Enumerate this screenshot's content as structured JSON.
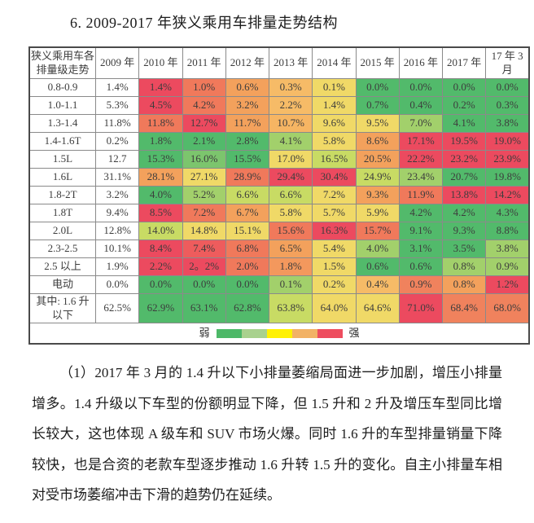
{
  "page": {
    "title": "6. 2009-2017 年狭义乘用车排量走势结构"
  },
  "chart_data": {
    "type": "heatmap",
    "title": "2009-2017 年狭义乘用车排量走势结构",
    "corner_label": "狭义乘用车各排量级走势",
    "columns": [
      "2009 年",
      "2010 年",
      "2011 年",
      "2012 年",
      "2013 年",
      "2014 年",
      "2015 年",
      "2016 年",
      "2017 年",
      "17 年 3 月"
    ],
    "rows": [
      {
        "label": "0.8-0.9",
        "base": "1.4%",
        "values": [
          "1.4%",
          "1.0%",
          "0.6%",
          "0.3%",
          "0.1%",
          "0.0%",
          "0.0%",
          "0.0%",
          "0.0%"
        ],
        "colors": [
          "#EC4A5F",
          "#F0795B",
          "#F3A15C",
          "#F6BB67",
          "#F0D967",
          "#52BA6B",
          "#52BA6B",
          "#52BA6B",
          "#52BA6B"
        ]
      },
      {
        "label": "1.0-1.1",
        "base": "5.3%",
        "values": [
          "4.5%",
          "4.2%",
          "3.2%",
          "2.2%",
          "1.4%",
          "0.7%",
          "0.4%",
          "0.2%",
          "0.3%"
        ],
        "colors": [
          "#EC4A5F",
          "#F0795B",
          "#F3A15C",
          "#F6BB67",
          "#F0D967",
          "#52BA6B",
          "#52BA6B",
          "#52BA6B",
          "#52BA6B"
        ]
      },
      {
        "label": "1.3-1.4",
        "base": "11.8%",
        "values": [
          "11.8%",
          "12.7%",
          "11.7%",
          "10.7%",
          "9.6%",
          "9.5%",
          "7.0%",
          "4.1%",
          "3.8%"
        ],
        "colors": [
          "#F0795B",
          "#EC4A5F",
          "#F3A15C",
          "#F6B563",
          "#F0D967",
          "#F0D967",
          "#A2D06B",
          "#52BA6B",
          "#52BA6B"
        ]
      },
      {
        "label": "1.4-1.6T",
        "base": "0.2%",
        "values": [
          "1.8%",
          "2.1%",
          "2.8%",
          "4.1%",
          "5.8%",
          "8.6%",
          "17.1%",
          "19.5%",
          "19.0%"
        ],
        "colors": [
          "#52BA6B",
          "#52BA6B",
          "#52BA6B",
          "#A2D06B",
          "#F0D967",
          "#F3A15C",
          "#EC4A5F",
          "#EC4A5F",
          "#EC4A5F"
        ]
      },
      {
        "label": "1.5L",
        "base": "12.7",
        "values": [
          "15.3%",
          "16.0%",
          "15.5%",
          "17.0%",
          "16.5%",
          "20.5%",
          "22.2%",
          "23.2%",
          "23.9%"
        ],
        "colors": [
          "#52BA6B",
          "#7CC56D",
          "#52BA6B",
          "#F0D967",
          "#C8DB64",
          "#F3A15C",
          "#EC4A5F",
          "#EC4A5F",
          "#EC4A5F"
        ]
      },
      {
        "label": "1.6L",
        "base": "31.1%",
        "values": [
          "28.1%",
          "27.1%",
          "28.9%",
          "29.4%",
          "30.4%",
          "24.9%",
          "23.4%",
          "20.7%",
          "19.8%"
        ],
        "colors": [
          "#F3A15C",
          "#F0D967",
          "#F0795B",
          "#EC4A5F",
          "#EC4A5F",
          "#C8DB64",
          "#A2D06B",
          "#52BA6B",
          "#52BA6B"
        ]
      },
      {
        "label": "1.8-2T",
        "base": "3.2%",
        "values": [
          "4.0%",
          "5.2%",
          "6.6%",
          "6.6%",
          "7.2%",
          "9.3%",
          "11.9%",
          "13.8%",
          "14.2%"
        ],
        "colors": [
          "#52BA6B",
          "#A2D06B",
          "#C8DB64",
          "#C8DB64",
          "#F0D967",
          "#F3A15C",
          "#F0795B",
          "#EC4A5F",
          "#EC4A5F"
        ]
      },
      {
        "label": "1.8T",
        "base": "9.4%",
        "values": [
          "8.5%",
          "7.2%",
          "6.7%",
          "5.8%",
          "5.7%",
          "5.9%",
          "4.2%",
          "4.2%",
          "4.3%"
        ],
        "colors": [
          "#EC4A5F",
          "#F0795B",
          "#F3A15C",
          "#F0D967",
          "#F0D967",
          "#F0D967",
          "#52BA6B",
          "#52BA6B",
          "#52BA6B"
        ]
      },
      {
        "label": "2.0L",
        "base": "12.8%",
        "values": [
          "14.0%",
          "14.8%",
          "15.1%",
          "15.6%",
          "16.3%",
          "15.7%",
          "9.1%",
          "9.3%",
          "8.8%"
        ],
        "colors": [
          "#C8DB64",
          "#F0D967",
          "#F0D967",
          "#F0795B",
          "#EC4A5F",
          "#F0795B",
          "#52BA6B",
          "#52BA6B",
          "#52BA6B"
        ]
      },
      {
        "label": "2.3-2.5",
        "base": "10.1%",
        "values": [
          "8.4%",
          "7.4%",
          "6.8%",
          "6.5%",
          "5.4%",
          "4.0%",
          "3.1%",
          "3.5%",
          "3.8%"
        ],
        "colors": [
          "#EC4A5F",
          "#EE5C5D",
          "#F0795B",
          "#F3A15C",
          "#F0D967",
          "#A2D06B",
          "#52BA6B",
          "#52BA6B",
          "#A2D06B"
        ]
      },
      {
        "label": "2.5 以上",
        "base": "1.9%",
        "values": [
          "2.2%",
          "2。2%",
          "2.0%",
          "1.8%",
          "1.5%",
          "0.6%",
          "0.6%",
          "0.8%",
          "0.9%"
        ],
        "colors": [
          "#EC4A5F",
          "#EC4A5F",
          "#F0795B",
          "#F3985D",
          "#F0D967",
          "#52BA6B",
          "#52BA6B",
          "#A2D06B",
          "#A2D06B"
        ]
      },
      {
        "label": "电动",
        "base": "0.0%",
        "values": [
          "0.0%",
          "0.0%",
          "0.0%",
          "0.1%",
          "0.2%",
          "0.4%",
          "0.9%",
          "0.8%",
          "1.2%"
        ],
        "colors": [
          "#52BA6B",
          "#52BA6B",
          "#52BA6B",
          "#A2D06B",
          "#F0D967",
          "#F6BB67",
          "#F0825D",
          "#F3A15C",
          "#EC4A5F"
        ]
      },
      {
        "label": "其中: 1.6 升以下",
        "base": "62.5%",
        "values": [
          "62.9%",
          "63.1%",
          "62.8%",
          "63.8%",
          "64.0%",
          "64.6%",
          "71.0%",
          "68.4%",
          "68.0%"
        ],
        "colors": [
          "#52BA6B",
          "#52BA6B",
          "#52BA6B",
          "#C8DB64",
          "#F0D967",
          "#F0D967",
          "#EC4A5F",
          "#F0825D",
          "#F0825D"
        ]
      }
    ],
    "legend": {
      "weak_label": "弱",
      "strong_label": "强",
      "colors": [
        "#4DB868",
        "#A9D18E",
        "#FFF104",
        "#F2B266",
        "#EE4D5F"
      ]
    }
  },
  "paragraph": "（1）2017 年 3 月的 1.4 升以下小排量萎缩局面进一步加剧，增压小排量增多。1.4 升级以下车型的份额明显下降，但 1.5 升和 2 升及增压车型同比增长较大，这也体现 A 级车和 SUV 市场火爆。同时 1.6 升的车型排量销量下降较快，也是合资的老款车型逐步推动 1.6 升转 1.5 升的变化。自主小排量车相对受市场萎缩冲击下滑的趋势仍在延续。"
}
